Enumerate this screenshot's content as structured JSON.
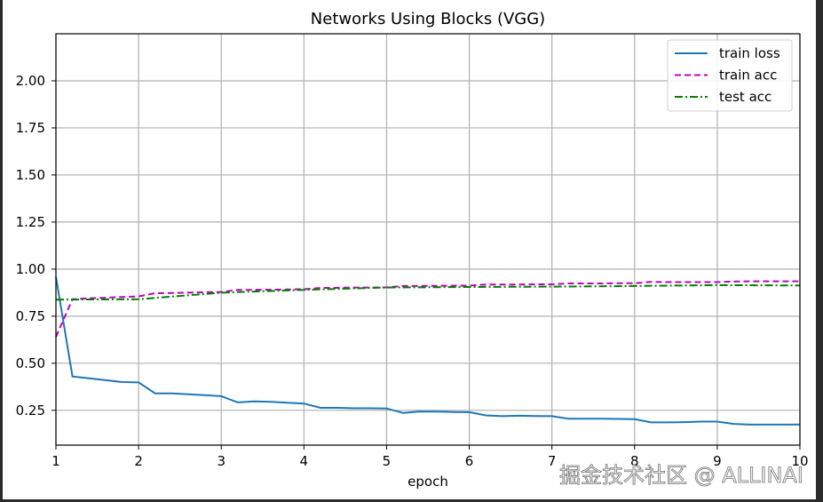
{
  "chart_data": {
    "type": "line",
    "title": "Networks Using Blocks (VGG)",
    "xlabel": "epoch",
    "ylabel": "",
    "xlim": [
      1,
      10
    ],
    "ylim": [
      0.065,
      2.25
    ],
    "xticks": [
      "1",
      "2",
      "3",
      "4",
      "5",
      "6",
      "7",
      "8",
      "9",
      "10"
    ],
    "yticks": [
      "0.25",
      "0.50",
      "0.75",
      "1.00",
      "1.25",
      "1.50",
      "1.75",
      "2.00"
    ],
    "grid": true,
    "legend_position": "upper right",
    "series": [
      {
        "name": "train loss",
        "color": "#1f77b4",
        "style": "solid",
        "x": [
          1,
          1.2,
          1.4,
          1.6,
          1.8,
          2,
          2.2,
          2.4,
          2.6,
          2.8,
          3,
          3.2,
          3.4,
          3.6,
          3.8,
          4,
          4.2,
          4.4,
          4.6,
          4.8,
          5,
          5.2,
          5.4,
          5.6,
          5.8,
          6,
          6.2,
          6.4,
          6.6,
          6.8,
          7,
          7.2,
          7.4,
          7.6,
          7.8,
          8,
          8.2,
          8.4,
          8.6,
          8.8,
          9,
          9.2,
          9.4,
          9.6,
          9.8,
          10
        ],
        "values": [
          0.96,
          0.43,
          0.42,
          0.41,
          0.4,
          0.398,
          0.34,
          0.34,
          0.335,
          0.33,
          0.325,
          0.292,
          0.297,
          0.295,
          0.29,
          0.286,
          0.263,
          0.263,
          0.261,
          0.261,
          0.26,
          0.236,
          0.244,
          0.243,
          0.241,
          0.24,
          0.223,
          0.219,
          0.221,
          0.22,
          0.219,
          0.205,
          0.205,
          0.205,
          0.204,
          0.203,
          0.186,
          0.186,
          0.187,
          0.19,
          0.19,
          0.178,
          0.174,
          0.174,
          0.174,
          0.175
        ]
      },
      {
        "name": "train acc",
        "color": "#bf00bf",
        "style": "dashed",
        "x": [
          1,
          1.2,
          1.4,
          1.6,
          1.8,
          2,
          2.2,
          2.4,
          2.6,
          2.8,
          3,
          3.2,
          3.4,
          3.6,
          3.8,
          4,
          4.2,
          4.4,
          4.6,
          4.8,
          5,
          5.2,
          5.4,
          5.6,
          5.8,
          6,
          6.2,
          6.4,
          6.6,
          6.8,
          7,
          7.2,
          7.4,
          7.6,
          7.8,
          8,
          8.2,
          8.4,
          8.6,
          8.8,
          9,
          9.2,
          9.4,
          9.6,
          9.8,
          10
        ],
        "values": [
          0.64,
          0.84,
          0.845,
          0.848,
          0.852,
          0.855,
          0.872,
          0.873,
          0.875,
          0.877,
          0.878,
          0.89,
          0.89,
          0.891,
          0.892,
          0.893,
          0.9,
          0.901,
          0.902,
          0.902,
          0.903,
          0.91,
          0.91,
          0.911,
          0.912,
          0.912,
          0.918,
          0.918,
          0.918,
          0.919,
          0.919,
          0.924,
          0.924,
          0.924,
          0.925,
          0.925,
          0.932,
          0.931,
          0.931,
          0.931,
          0.931,
          0.934,
          0.935,
          0.935,
          0.935,
          0.935
        ]
      },
      {
        "name": "test acc",
        "color": "#008000",
        "style": "dashdot",
        "x": [
          1,
          2,
          3,
          4,
          5,
          6,
          7,
          8,
          9,
          10
        ],
        "values": [
          0.838,
          0.84,
          0.875,
          0.89,
          0.902,
          0.905,
          0.907,
          0.91,
          0.915,
          0.913
        ]
      }
    ]
  },
  "watermark": "掘金技术社区 @ ALLINAI"
}
